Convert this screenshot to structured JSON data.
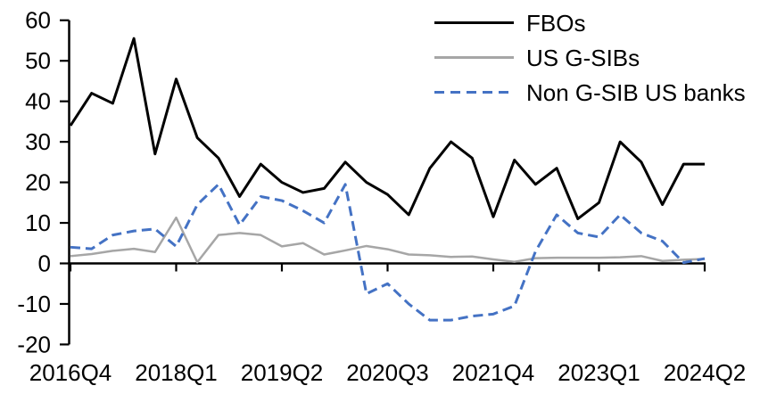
{
  "chart_data": {
    "type": "line",
    "title": "",
    "xlabel": "",
    "ylabel": "",
    "grid": false,
    "legend_position": "top-right",
    "ylim": [
      -20,
      60
    ],
    "y_ticks": [
      60,
      50,
      40,
      30,
      20,
      10,
      0,
      -10,
      -20
    ],
    "x_tick_labels": [
      "2016Q4",
      "2018Q1",
      "2019Q2",
      "2020Q3",
      "2021Q4",
      "2023Q1",
      "2024Q2"
    ],
    "x_tick_indices": [
      0,
      5,
      10,
      15,
      20,
      25,
      30
    ],
    "x": [
      "2016Q4",
      "2017Q1",
      "2017Q2",
      "2017Q3",
      "2017Q4",
      "2018Q1",
      "2018Q2",
      "2018Q3",
      "2018Q4",
      "2019Q1",
      "2019Q2",
      "2019Q3",
      "2019Q4",
      "2020Q1",
      "2020Q2",
      "2020Q3",
      "2020Q4",
      "2021Q1",
      "2021Q2",
      "2021Q3",
      "2021Q4",
      "2022Q1",
      "2022Q2",
      "2022Q3",
      "2022Q4",
      "2023Q1",
      "2023Q2",
      "2023Q3",
      "2023Q4",
      "2024Q1",
      "2024Q2"
    ],
    "series": [
      {
        "name": "FBOs",
        "color": "#000000",
        "line_style": "solid",
        "values": [
          34,
          42,
          39.5,
          55.5,
          27,
          45.5,
          31,
          26,
          16.5,
          24.5,
          20,
          17.5,
          18.5,
          25,
          20,
          17,
          12,
          23.5,
          30,
          26,
          11.5,
          25.5,
          19.5,
          23.5,
          11,
          15,
          30,
          25,
          14.5,
          24.5,
          24.5
        ]
      },
      {
        "name": "US G-SIBs",
        "color": "#A6A6A6",
        "line_style": "solid",
        "values": [
          1.8,
          2.3,
          3.1,
          3.6,
          2.8,
          11.3,
          0.3,
          7,
          7.5,
          7,
          4.2,
          5,
          2.2,
          3.2,
          4.3,
          3.5,
          2.2,
          2,
          1.6,
          1.7,
          1,
          0.4,
          1.3,
          1.4,
          1.4,
          1.4,
          1.5,
          1.8,
          0.6,
          0.9,
          1.1
        ]
      },
      {
        "name": "Non G-SIB US banks",
        "color": "#4472C4",
        "line_style": "dashed",
        "values": [
          4,
          3.6,
          7,
          8,
          8.5,
          4.2,
          14.5,
          19.5,
          9.5,
          16.5,
          15.5,
          13,
          10,
          19.5,
          -7.5,
          -5,
          -10,
          -14,
          -14,
          -13,
          -12.5,
          -10.5,
          3,
          12,
          7.5,
          6.5,
          12,
          7.5,
          5.5,
          0.2,
          1.2
        ]
      }
    ]
  }
}
